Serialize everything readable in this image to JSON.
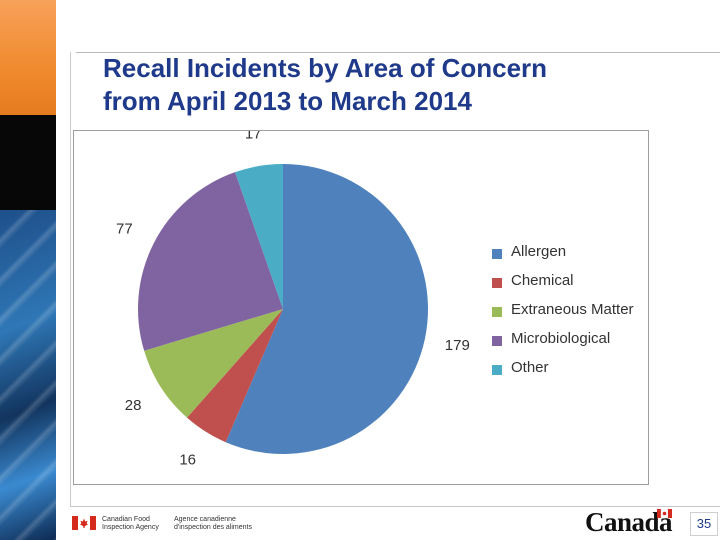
{
  "title_line1": "Recall Incidents by Area of Concern",
  "title_line2": "from April 2013 to March 2014",
  "chart_data": {
    "type": "pie",
    "title": "Recall Incidents by Area of Concern from April 2013 to March 2014",
    "categories": [
      "Allergen",
      "Chemical",
      "Extraneous Matter",
      "Microbiological",
      "Other"
    ],
    "values": [
      179,
      16,
      28,
      77,
      17
    ],
    "colors": [
      "#4f81bd",
      "#c0504d",
      "#9bbb59",
      "#8064a2",
      "#4bacc6"
    ],
    "legend_position": "right",
    "start_angle_deg": 0,
    "direction": "clockwise"
  },
  "footer": {
    "agency_en_line1": "Canadian Food",
    "agency_en_line2": "Inspection Agency",
    "agency_fr_line1": "Agence canadienne",
    "agency_fr_line2": "d'inspection des aliments",
    "wordmark": "Canada",
    "page_number": "35"
  },
  "icons": {
    "flag": "canada-flag-icon"
  }
}
